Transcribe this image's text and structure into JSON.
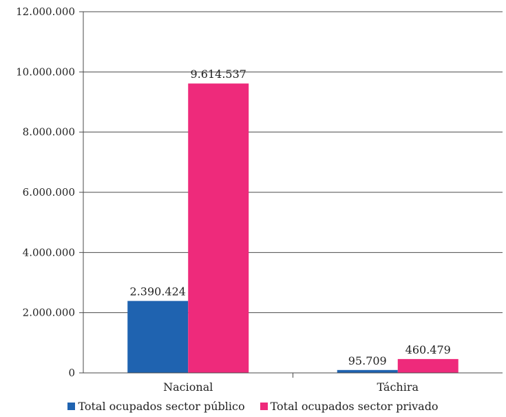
{
  "chart_data": {
    "type": "bar",
    "categories": [
      "Nacional",
      "Táchira"
    ],
    "series": [
      {
        "name": "Total ocupados sector público",
        "values": [
          2390424,
          95709
        ],
        "labels": [
          "2.390.424",
          "95.709"
        ],
        "color": "#1f63b0"
      },
      {
        "name": "Total ocupados sector privado",
        "values": [
          9614537,
          460479
        ],
        "labels": [
          "9.614.537",
          "460.479"
        ],
        "color": "#ee2a7b"
      }
    ],
    "ylim": [
      0,
      12000000
    ],
    "yticks": [
      0,
      2000000,
      4000000,
      6000000,
      8000000,
      10000000,
      12000000
    ],
    "ytick_labels": [
      "0",
      "2.000.000",
      "4.000.000",
      "6.000.000",
      "8.000.000",
      "10.000.000",
      "12.000.000"
    ],
    "grid": true,
    "legend_position": "bottom"
  }
}
